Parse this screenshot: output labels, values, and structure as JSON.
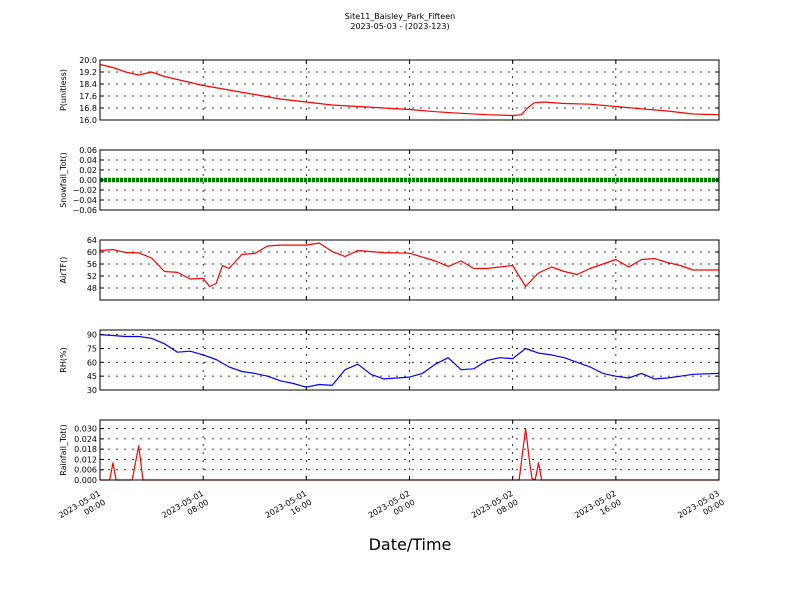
{
  "chart_data": {
    "type": "line",
    "title": "Site11_Baisley_Park_Fifteen",
    "subtitle": "2023-05-03 - (2023-123)",
    "xlabel": "Date/Time",
    "x_range": [
      "2023-05-01 00:00",
      "2023-05-03 00:00"
    ],
    "x_ticks": [
      {
        "x": "2023-05-01 00:00",
        "line1": "2023-05-01",
        "line2": "00:00"
      },
      {
        "x": "2023-05-01 08:00",
        "line1": "2023-05-01",
        "line2": "08:00"
      },
      {
        "x": "2023-05-01 16:00",
        "line1": "2023-05-01",
        "line2": "16:00"
      },
      {
        "x": "2023-05-02 00:00",
        "line1": "2023-05-02",
        "line2": "00:00"
      },
      {
        "x": "2023-05-02 08:00",
        "line1": "2023-05-02",
        "line2": "08:00"
      },
      {
        "x": "2023-05-02 16:00",
        "line1": "2023-05-02",
        "line2": "16:00"
      },
      {
        "x": "2023-05-03 00:00",
        "line1": "2023-05-03",
        "line2": "00:00"
      }
    ],
    "grid": true,
    "panels": [
      {
        "id": "p",
        "ylabel": "P(unitless)",
        "ylim": [
          16.0,
          20.0
        ],
        "yticks": [
          "16.0",
          "16.8",
          "17.6",
          "18.4",
          "19.2",
          "20.0"
        ],
        "color": "#ff0000",
        "style": "line",
        "points": [
          [
            "2023-05-01 00:00",
            19.7
          ],
          [
            "2023-05-01 01:00",
            19.5
          ],
          [
            "2023-05-01 02:00",
            19.2
          ],
          [
            "2023-05-01 03:00",
            19.0
          ],
          [
            "2023-05-01 04:00",
            19.2
          ],
          [
            "2023-05-01 05:00",
            18.9
          ],
          [
            "2023-05-01 06:00",
            18.7
          ],
          [
            "2023-05-01 08:00",
            18.3
          ],
          [
            "2023-05-01 10:00",
            18.0
          ],
          [
            "2023-05-01 12:00",
            17.7
          ],
          [
            "2023-05-01 14:00",
            17.4
          ],
          [
            "2023-05-01 16:00",
            17.2
          ],
          [
            "2023-05-01 18:00",
            17.0
          ],
          [
            "2023-05-01 20:00",
            16.9
          ],
          [
            "2023-05-01 22:00",
            16.8
          ],
          [
            "2023-05-02 00:00",
            16.7
          ],
          [
            "2023-05-02 02:00",
            16.55
          ],
          [
            "2023-05-02 04:00",
            16.45
          ],
          [
            "2023-05-02 06:00",
            16.35
          ],
          [
            "2023-05-02 08:00",
            16.3
          ],
          [
            "2023-05-02 08:40",
            16.35
          ],
          [
            "2023-05-02 09:10",
            16.8
          ],
          [
            "2023-05-02 09:40",
            17.15
          ],
          [
            "2023-05-02 10:20",
            17.2
          ],
          [
            "2023-05-02 12:00",
            17.1
          ],
          [
            "2023-05-02 14:00",
            17.05
          ],
          [
            "2023-05-02 16:00",
            16.9
          ],
          [
            "2023-05-02 18:00",
            16.75
          ],
          [
            "2023-05-02 20:00",
            16.6
          ],
          [
            "2023-05-02 22:00",
            16.4
          ],
          [
            "2023-05-03 00:00",
            16.35
          ]
        ]
      },
      {
        "id": "snow",
        "ylabel": "Snowfall_Tot()",
        "ylim": [
          -0.06,
          0.06
        ],
        "yticks": [
          "−0.06",
          "−0.04",
          "−0.02",
          "0.00",
          "0.02",
          "0.04",
          "0.06"
        ],
        "color": "#008000",
        "style": "dots",
        "constant": 0.0
      },
      {
        "id": "air",
        "ylabel": "AirTF()",
        "ylim": [
          44,
          64
        ],
        "yticks": [
          "48",
          "52",
          "56",
          "60",
          "64"
        ],
        "color": "#ff0000",
        "style": "line",
        "points": [
          [
            "2023-05-01 00:00",
            60.5
          ],
          [
            "2023-05-01 01:00",
            60.8
          ],
          [
            "2023-05-01 02:00",
            59.8
          ],
          [
            "2023-05-01 03:00",
            59.7
          ],
          [
            "2023-05-01 04:00",
            58.0
          ],
          [
            "2023-05-01 05:00",
            53.5
          ],
          [
            "2023-05-01 06:00",
            53.2
          ],
          [
            "2023-05-01 07:00",
            51.0
          ],
          [
            "2023-05-01 08:00",
            51.2
          ],
          [
            "2023-05-01 08:30",
            48.5
          ],
          [
            "2023-05-01 09:00",
            49.5
          ],
          [
            "2023-05-01 09:30",
            55.5
          ],
          [
            "2023-05-01 10:00",
            54.5
          ],
          [
            "2023-05-01 11:00",
            59.2
          ],
          [
            "2023-05-01 12:00",
            59.5
          ],
          [
            "2023-05-01 13:00",
            62.0
          ],
          [
            "2023-05-01 14:00",
            62.3
          ],
          [
            "2023-05-01 16:00",
            62.3
          ],
          [
            "2023-05-01 17:00",
            63.0
          ],
          [
            "2023-05-01 18:00",
            60.2
          ],
          [
            "2023-05-01 19:00",
            58.5
          ],
          [
            "2023-05-01 20:00",
            60.5
          ],
          [
            "2023-05-01 22:00",
            59.8
          ],
          [
            "2023-05-02 00:00",
            59.6
          ],
          [
            "2023-05-02 02:00",
            57.0
          ],
          [
            "2023-05-02 03:00",
            55.2
          ],
          [
            "2023-05-02 04:00",
            57.0
          ],
          [
            "2023-05-02 05:00",
            54.5
          ],
          [
            "2023-05-02 06:00",
            54.5
          ],
          [
            "2023-05-02 07:00",
            55.0
          ],
          [
            "2023-05-02 08:00",
            55.5
          ],
          [
            "2023-05-02 09:00",
            48.5
          ],
          [
            "2023-05-02 10:00",
            53.0
          ],
          [
            "2023-05-02 11:00",
            55.0
          ],
          [
            "2023-05-02 12:00",
            53.5
          ],
          [
            "2023-05-02 13:00",
            52.5
          ],
          [
            "2023-05-02 14:00",
            54.5
          ],
          [
            "2023-05-02 15:00",
            56.0
          ],
          [
            "2023-05-02 16:00",
            57.5
          ],
          [
            "2023-05-02 17:00",
            55.0
          ],
          [
            "2023-05-02 18:00",
            57.5
          ],
          [
            "2023-05-02 19:00",
            57.8
          ],
          [
            "2023-05-02 20:00",
            56.5
          ],
          [
            "2023-05-02 21:00",
            55.5
          ],
          [
            "2023-05-02 22:00",
            54.0
          ],
          [
            "2023-05-03 00:00",
            54.0
          ]
        ]
      },
      {
        "id": "rh",
        "ylabel": "RH(%)",
        "ylim": [
          30,
          95
        ],
        "yticks": [
          "30",
          "45",
          "60",
          "75",
          "90"
        ],
        "color": "#0000ff",
        "style": "line",
        "points": [
          [
            "2023-05-01 00:00",
            90
          ],
          [
            "2023-05-01 01:00",
            89
          ],
          [
            "2023-05-01 02:00",
            88
          ],
          [
            "2023-05-01 03:00",
            88
          ],
          [
            "2023-05-01 04:00",
            86
          ],
          [
            "2023-05-01 05:00",
            80
          ],
          [
            "2023-05-01 06:00",
            71
          ],
          [
            "2023-05-01 07:00",
            72
          ],
          [
            "2023-05-01 08:00",
            68
          ],
          [
            "2023-05-01 09:00",
            63
          ],
          [
            "2023-05-01 10:00",
            55
          ],
          [
            "2023-05-01 11:00",
            50
          ],
          [
            "2023-05-01 12:00",
            48
          ],
          [
            "2023-05-01 13:00",
            45
          ],
          [
            "2023-05-01 14:00",
            40
          ],
          [
            "2023-05-01 15:00",
            37
          ],
          [
            "2023-05-01 16:00",
            33
          ],
          [
            "2023-05-01 17:00",
            36
          ],
          [
            "2023-05-01 18:00",
            35
          ],
          [
            "2023-05-01 19:00",
            52
          ],
          [
            "2023-05-01 20:00",
            58
          ],
          [
            "2023-05-01 21:00",
            47
          ],
          [
            "2023-05-01 22:00",
            42
          ],
          [
            "2023-05-01 23:00",
            43
          ],
          [
            "2023-05-02 00:00",
            44
          ],
          [
            "2023-05-02 01:00",
            48
          ],
          [
            "2023-05-02 02:00",
            58
          ],
          [
            "2023-05-02 03:00",
            65
          ],
          [
            "2023-05-02 04:00",
            52
          ],
          [
            "2023-05-02 05:00",
            53
          ],
          [
            "2023-05-02 06:00",
            62
          ],
          [
            "2023-05-02 07:00",
            65
          ],
          [
            "2023-05-02 08:00",
            64
          ],
          [
            "2023-05-02 09:00",
            75
          ],
          [
            "2023-05-02 10:00",
            70
          ],
          [
            "2023-05-02 11:00",
            68
          ],
          [
            "2023-05-02 12:00",
            65
          ],
          [
            "2023-05-02 13:00",
            60
          ],
          [
            "2023-05-02 14:00",
            55
          ],
          [
            "2023-05-02 15:00",
            48
          ],
          [
            "2023-05-02 16:00",
            45
          ],
          [
            "2023-05-02 17:00",
            43
          ],
          [
            "2023-05-02 18:00",
            48
          ],
          [
            "2023-05-02 19:00",
            42
          ],
          [
            "2023-05-02 20:00",
            43
          ],
          [
            "2023-05-02 21:00",
            45
          ],
          [
            "2023-05-02 22:00",
            47
          ],
          [
            "2023-05-03 00:00",
            48
          ]
        ]
      },
      {
        "id": "rain",
        "ylabel": "Rainfall_Tot()",
        "ylim": [
          0,
          0.035
        ],
        "yticks": [
          "0.000",
          "0.006",
          "0.012",
          "0.018",
          "0.024",
          "0.030"
        ],
        "color": "#ff0000",
        "style": "line",
        "points": [
          [
            "2023-05-01 00:00",
            0
          ],
          [
            "2023-05-01 00:45",
            0
          ],
          [
            "2023-05-01 01:00",
            0.01
          ],
          [
            "2023-05-01 01:15",
            0
          ],
          [
            "2023-05-01 02:30",
            0
          ],
          [
            "2023-05-01 03:00",
            0.02
          ],
          [
            "2023-05-01 03:20",
            0
          ],
          [
            "2023-05-02 08:30",
            0
          ],
          [
            "2023-05-02 09:00",
            0.03
          ],
          [
            "2023-05-02 09:20",
            0.009
          ],
          [
            "2023-05-02 09:30",
            0.001
          ],
          [
            "2023-05-02 09:45",
            0
          ],
          [
            "2023-05-02 10:00",
            0.01
          ],
          [
            "2023-05-02 10:15",
            0
          ],
          [
            "2023-05-03 00:00",
            0
          ]
        ]
      }
    ]
  }
}
